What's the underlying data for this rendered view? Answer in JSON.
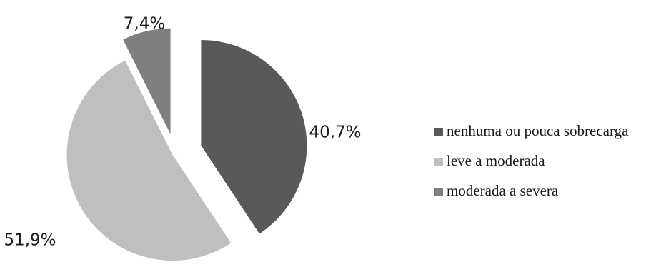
{
  "chart_data": {
    "type": "pie",
    "title": "",
    "slices": [
      {
        "label": "nenhuma ou pouca sobrecarga",
        "value": 40.7,
        "display": "40,7%",
        "color": "#595959"
      },
      {
        "label": "leve a moderada",
        "value": 51.9,
        "display": "51,9%",
        "color": "#bfbfbf"
      },
      {
        "label": "moderada a severa",
        "value": 7.4,
        "display": "7,4%",
        "color": "#7f7f7f"
      }
    ],
    "exploded": true,
    "legend_position": "right"
  }
}
